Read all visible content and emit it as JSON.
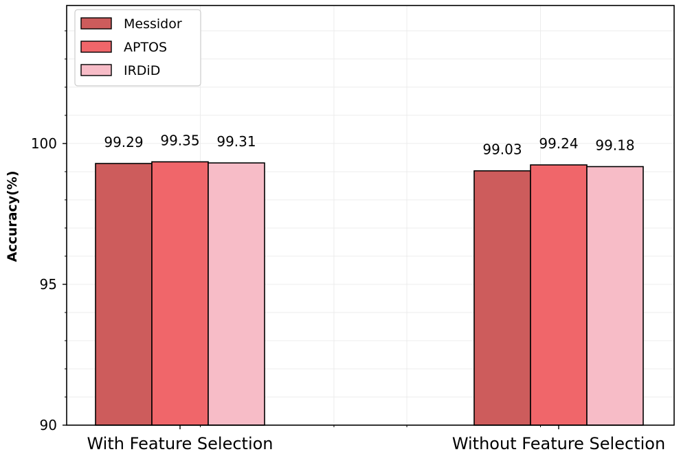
{
  "chart_data": {
    "type": "bar",
    "categories": [
      "With Feature Selection",
      "Without Feature Selection"
    ],
    "series": [
      {
        "name": "Messidor",
        "values": [
          99.29,
          99.03
        ],
        "color": "#cd5c5c"
      },
      {
        "name": "APTOS",
        "values": [
          99.35,
          99.24
        ],
        "color": "#f0666a"
      },
      {
        "name": "IRDiD",
        "values": [
          99.31,
          99.18
        ],
        "color": "#f7bcc7"
      }
    ],
    "data_labels": [
      [
        "99.29",
        "99.03"
      ],
      [
        "99.35",
        "99.24"
      ],
      [
        "99.31",
        "99.18"
      ]
    ],
    "ylabel": "Accuracy(%)",
    "ylim": [
      90,
      104.9
    ],
    "yticks": [
      90,
      95,
      100
    ],
    "grid": true,
    "legend_position": "top-left"
  }
}
